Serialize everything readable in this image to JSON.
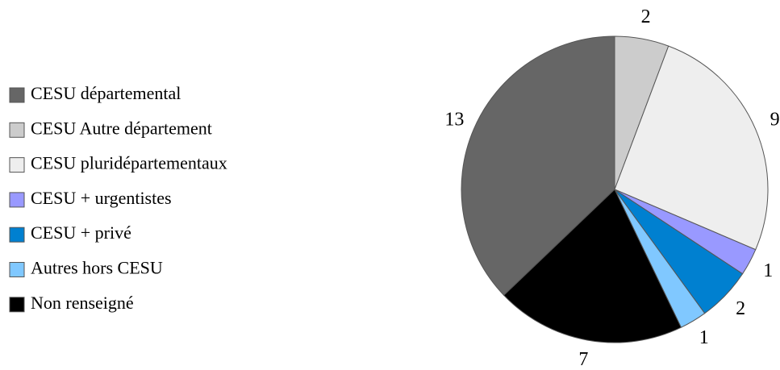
{
  "chart_data": {
    "type": "pie",
    "categories": [
      "CESU départemental",
      "CESU Autre département",
      "CESU pluridépartementaux",
      "CESU + urgentistes",
      "CESU + privé",
      "Autres hors CESU",
      "Non renseigné"
    ],
    "values": [
      13,
      2,
      9,
      1,
      2,
      1,
      7
    ],
    "colors": [
      "#666666",
      "#cccccc",
      "#eeeeee",
      "#9999ff",
      "#0080d0",
      "#80c8ff",
      "#000000"
    ],
    "legend": "left"
  }
}
